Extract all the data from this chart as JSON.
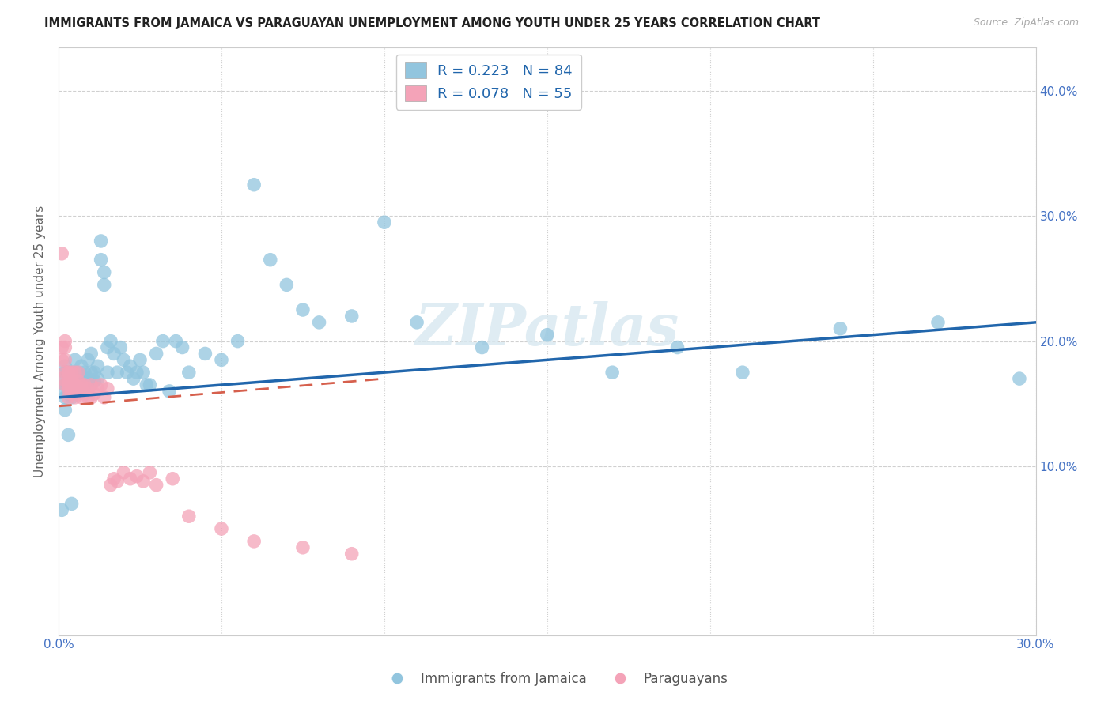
{
  "title": "IMMIGRANTS FROM JAMAICA VS PARAGUAYAN UNEMPLOYMENT AMONG YOUTH UNDER 25 YEARS CORRELATION CHART",
  "source": "Source: ZipAtlas.com",
  "ylabel": "Unemployment Among Youth under 25 years",
  "x_lim": [
    0.0,
    0.3
  ],
  "y_lim": [
    -0.035,
    0.435
  ],
  "legend1_label": "R = 0.223   N = 84",
  "legend2_label": "R = 0.078   N = 55",
  "blue_color": "#92c5de",
  "pink_color": "#f4a3b8",
  "blue_line_color": "#2166ac",
  "pink_line_color": "#d6604d",
  "watermark": "ZIPatlas",
  "blue_line_x0": 0.0,
  "blue_line_y0": 0.155,
  "blue_line_x1": 0.3,
  "blue_line_y1": 0.215,
  "pink_line_x0": 0.0,
  "pink_line_y0": 0.148,
  "pink_line_x1": 0.1,
  "pink_line_y1": 0.17,
  "blue_x": [
    0.001,
    0.001,
    0.002,
    0.002,
    0.002,
    0.002,
    0.003,
    0.003,
    0.003,
    0.003,
    0.004,
    0.004,
    0.004,
    0.004,
    0.005,
    0.005,
    0.005,
    0.005,
    0.006,
    0.006,
    0.006,
    0.007,
    0.007,
    0.007,
    0.008,
    0.008,
    0.008,
    0.009,
    0.009,
    0.01,
    0.01,
    0.01,
    0.011,
    0.011,
    0.012,
    0.012,
    0.013,
    0.013,
    0.014,
    0.014,
    0.015,
    0.015,
    0.016,
    0.017,
    0.018,
    0.019,
    0.02,
    0.021,
    0.022,
    0.023,
    0.024,
    0.025,
    0.026,
    0.027,
    0.028,
    0.03,
    0.032,
    0.034,
    0.036,
    0.038,
    0.04,
    0.045,
    0.05,
    0.055,
    0.06,
    0.065,
    0.07,
    0.075,
    0.08,
    0.09,
    0.1,
    0.11,
    0.13,
    0.15,
    0.17,
    0.19,
    0.21,
    0.24,
    0.27,
    0.295,
    0.001,
    0.002,
    0.003,
    0.004
  ],
  "blue_y": [
    0.17,
    0.16,
    0.175,
    0.165,
    0.155,
    0.18,
    0.168,
    0.175,
    0.158,
    0.162,
    0.17,
    0.165,
    0.175,
    0.155,
    0.16,
    0.175,
    0.185,
    0.165,
    0.17,
    0.16,
    0.175,
    0.172,
    0.165,
    0.18,
    0.168,
    0.175,
    0.16,
    0.17,
    0.185,
    0.165,
    0.175,
    0.19,
    0.168,
    0.175,
    0.17,
    0.18,
    0.265,
    0.28,
    0.255,
    0.245,
    0.175,
    0.195,
    0.2,
    0.19,
    0.175,
    0.195,
    0.185,
    0.175,
    0.18,
    0.17,
    0.175,
    0.185,
    0.175,
    0.165,
    0.165,
    0.19,
    0.2,
    0.16,
    0.2,
    0.195,
    0.175,
    0.19,
    0.185,
    0.2,
    0.325,
    0.265,
    0.245,
    0.225,
    0.215,
    0.22,
    0.295,
    0.215,
    0.195,
    0.205,
    0.175,
    0.195,
    0.175,
    0.21,
    0.215,
    0.17,
    0.065,
    0.145,
    0.125,
    0.07
  ],
  "pink_x": [
    0.001,
    0.001,
    0.001,
    0.001,
    0.002,
    0.002,
    0.002,
    0.002,
    0.002,
    0.003,
    0.003,
    0.003,
    0.003,
    0.003,
    0.003,
    0.004,
    0.004,
    0.004,
    0.004,
    0.005,
    0.005,
    0.005,
    0.005,
    0.006,
    0.006,
    0.006,
    0.007,
    0.007,
    0.007,
    0.008,
    0.008,
    0.009,
    0.009,
    0.01,
    0.01,
    0.011,
    0.012,
    0.013,
    0.014,
    0.015,
    0.016,
    0.017,
    0.018,
    0.02,
    0.022,
    0.024,
    0.026,
    0.028,
    0.03,
    0.035,
    0.04,
    0.05,
    0.06,
    0.075,
    0.09
  ],
  "pink_y": [
    0.27,
    0.195,
    0.185,
    0.17,
    0.2,
    0.195,
    0.185,
    0.175,
    0.165,
    0.175,
    0.168,
    0.162,
    0.155,
    0.175,
    0.165,
    0.168,
    0.158,
    0.175,
    0.162,
    0.165,
    0.175,
    0.155,
    0.165,
    0.158,
    0.168,
    0.175,
    0.162,
    0.155,
    0.165,
    0.158,
    0.165,
    0.155,
    0.162,
    0.155,
    0.165,
    0.158,
    0.162,
    0.165,
    0.155,
    0.162,
    0.085,
    0.09,
    0.088,
    0.095,
    0.09,
    0.092,
    0.088,
    0.095,
    0.085,
    0.09,
    0.06,
    0.05,
    0.04,
    0.035,
    0.03
  ]
}
